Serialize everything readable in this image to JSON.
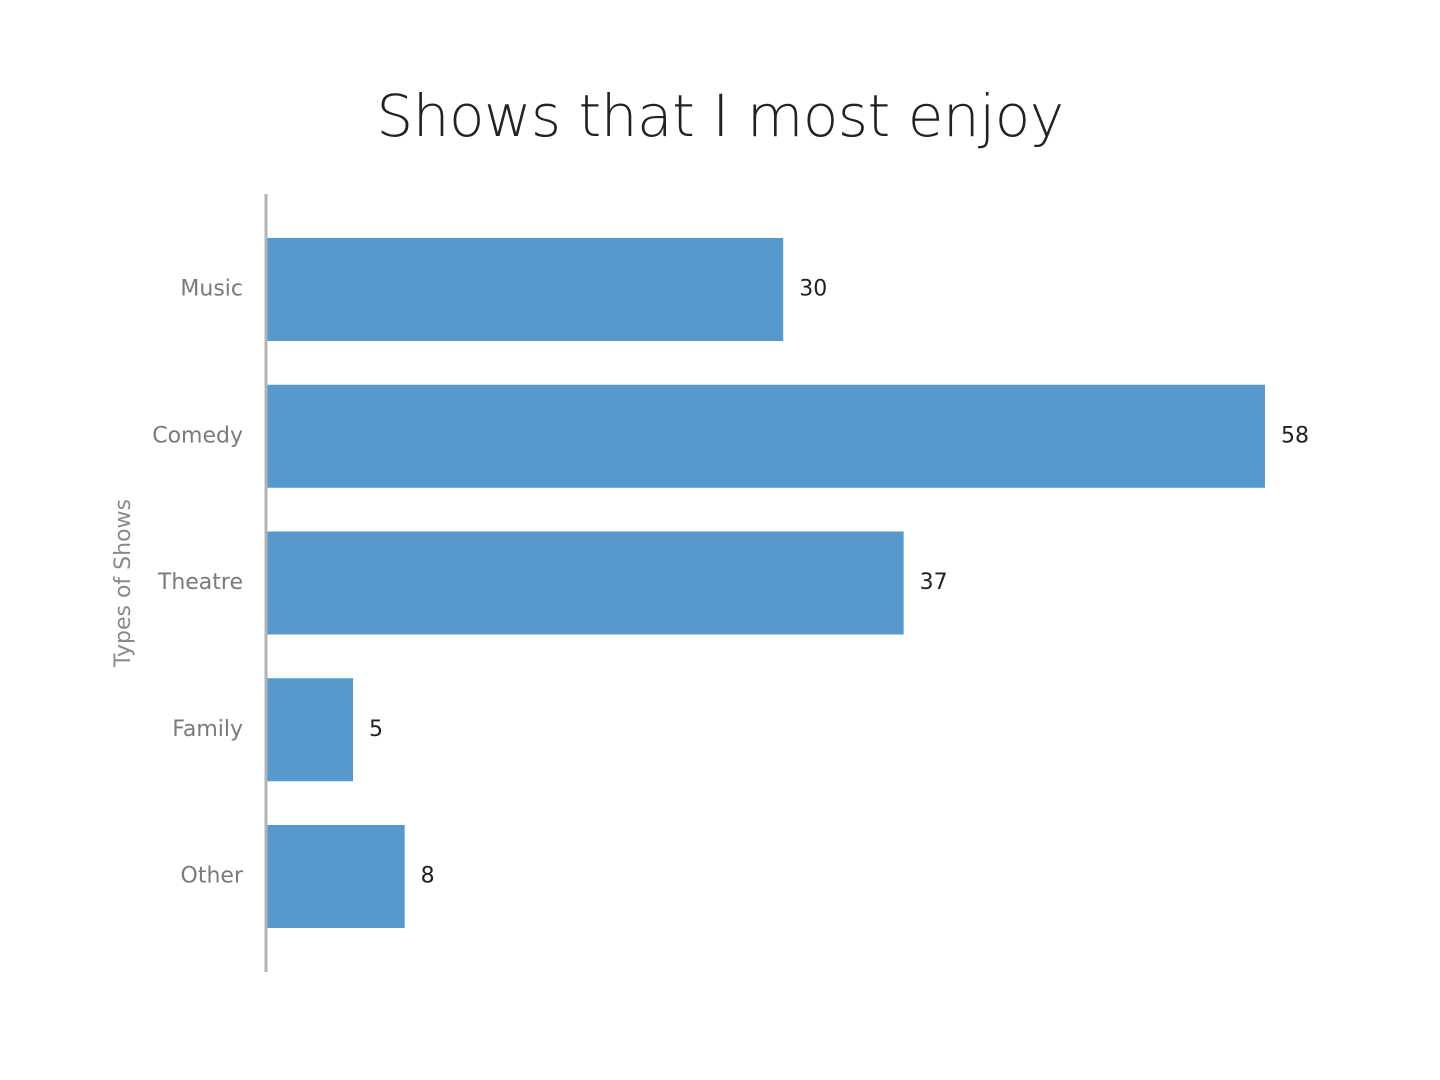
{
  "chart_data": {
    "type": "bar",
    "orientation": "horizontal",
    "title": "Shows that I most enjoy",
    "ylabel": "Types of Shows",
    "xlabel": "",
    "categories": [
      "Music",
      "Comedy",
      "Theatre",
      "Family",
      "Other"
    ],
    "values": [
      30,
      58,
      37,
      5,
      8
    ],
    "xlim": [
      0,
      58
    ],
    "grid": false,
    "legend": "none",
    "bar_color": "#5799cc",
    "axis_color": "#b3b3b3",
    "data_labels": true
  }
}
